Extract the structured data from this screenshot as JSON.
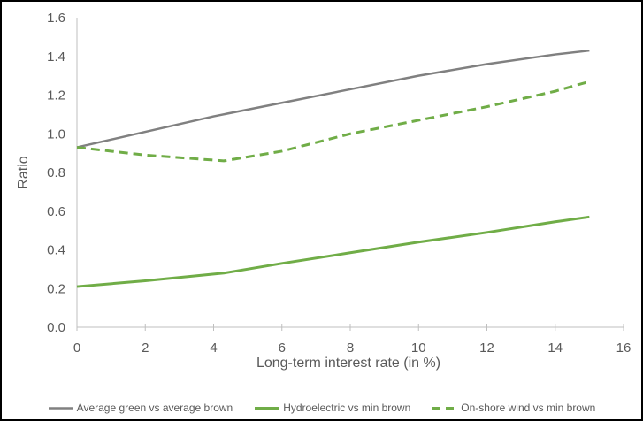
{
  "chart_data": {
    "type": "line",
    "title": "",
    "xlabel": "Long-term interest rate (in %)",
    "ylabel": "Ratio",
    "xlim": [
      0,
      16
    ],
    "ylim": [
      0,
      1.6
    ],
    "x_tick_labels": [
      "0",
      "2",
      "4",
      "6",
      "8",
      "10",
      "12",
      "14",
      "16"
    ],
    "y_tick_labels": [
      "0.0",
      "0.2",
      "0.4",
      "0.6",
      "0.8",
      "1.0",
      "1.2",
      "1.4",
      "1.6"
    ],
    "grid": false,
    "legend_position": "bottom",
    "series": [
      {
        "name": "Average green vs average brown",
        "color": "#808080",
        "style": "solid",
        "width": 2.5,
        "x": [
          0,
          2,
          4,
          6,
          8,
          10,
          12,
          14,
          15
        ],
        "values": [
          0.93,
          1.01,
          1.09,
          1.16,
          1.23,
          1.3,
          1.36,
          1.41,
          1.43
        ]
      },
      {
        "name": "Hydroelectric vs min brown",
        "color": "#70AD47",
        "style": "solid",
        "width": 3,
        "x": [
          0,
          2,
          4.3,
          6,
          8,
          10,
          12,
          14,
          15
        ],
        "values": [
          0.21,
          0.24,
          0.28,
          0.33,
          0.385,
          0.44,
          0.49,
          0.545,
          0.57
        ]
      },
      {
        "name": "On-shore wind vs min brown",
        "color": "#70AD47",
        "style": "dashed",
        "width": 3,
        "x": [
          0,
          2,
          4.3,
          6,
          8,
          10,
          12,
          14,
          15
        ],
        "values": [
          0.93,
          0.89,
          0.86,
          0.91,
          1.0,
          1.07,
          1.14,
          1.22,
          1.27
        ]
      }
    ]
  },
  "colors": {
    "axis_line": "#BFBFBF",
    "tick_text": "#595959",
    "frame_border": "#000000",
    "background": "#FFFFFF"
  }
}
